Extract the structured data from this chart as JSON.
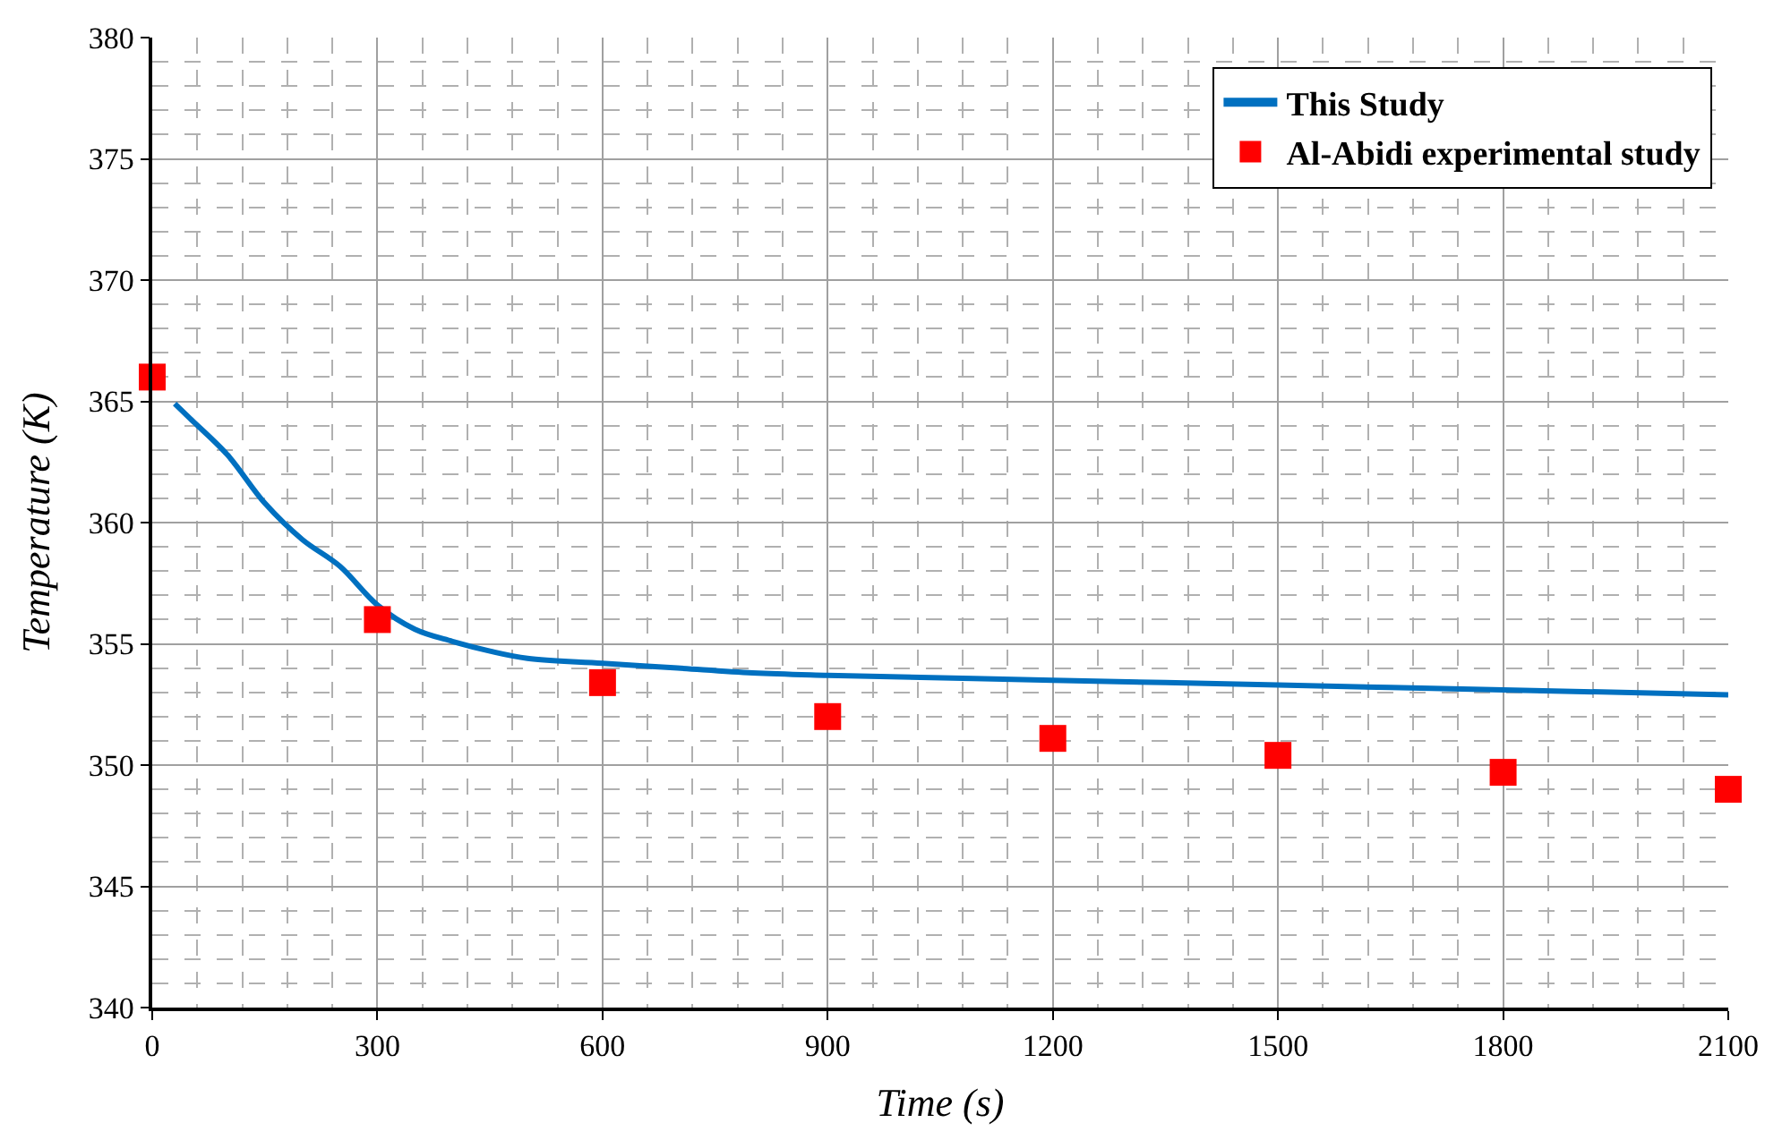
{
  "chart_data": {
    "type": "line",
    "xlabel": "Time (s)",
    "ylabel": "Temperature (K)",
    "xlim": [
      0,
      2100
    ],
    "xticks": [
      0,
      300,
      600,
      900,
      1200,
      1500,
      1800,
      2100
    ],
    "ylim": [
      340,
      380
    ],
    "yticks": [
      340,
      345,
      350,
      355,
      360,
      365,
      370,
      375,
      380
    ],
    "grid": true,
    "legend": "top right",
    "series": [
      {
        "name": "This Study",
        "color": "#0070c0",
        "marker": "none",
        "line_style": "solid",
        "x": [
          30,
          50,
          100,
          150,
          200,
          250,
          300,
          350,
          400,
          450,
          500,
          600,
          700,
          800,
          900,
          1200,
          1500,
          1800,
          2100
        ],
        "values": [
          364.9,
          364.3,
          362.8,
          360.8,
          359.3,
          358.2,
          356.6,
          355.6,
          355.1,
          354.7,
          354.4,
          354.2,
          354.0,
          353.8,
          353.7,
          353.5,
          353.3,
          353.1,
          352.9
        ]
      },
      {
        "name": "Al-Abidi experimental study",
        "type": "scatter",
        "color": "#ff0000",
        "marker": "square",
        "x": [
          0,
          300,
          600,
          900,
          1200,
          1500,
          1800,
          2100
        ],
        "values": [
          366.0,
          356.0,
          353.4,
          352.0,
          351.1,
          350.4,
          349.7,
          349.0
        ]
      }
    ]
  }
}
